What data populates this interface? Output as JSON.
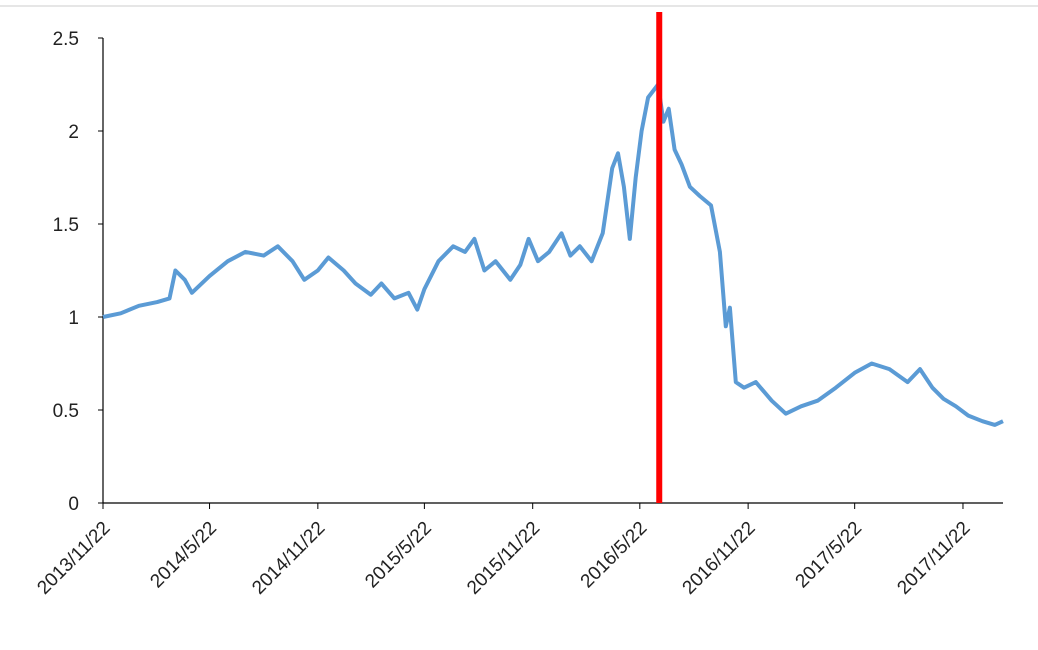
{
  "chart_data": {
    "type": "line",
    "x": [
      "2013/11/22",
      "2013/12/22",
      "2014/1/22",
      "2014/2/22",
      "2014/3/15",
      "2014/3/25",
      "2014/4/10",
      "2014/4/22",
      "2014/5/22",
      "2014/6/22",
      "2014/7/22",
      "2014/8/22",
      "2014/9/15",
      "2014/10/10",
      "2014/10/30",
      "2014/11/22",
      "2014/12/10",
      "2015/1/5",
      "2015/1/25",
      "2015/2/20",
      "2015/3/10",
      "2015/4/1",
      "2015/4/25",
      "2015/5/10",
      "2015/5/22",
      "2015/6/15",
      "2015/7/10",
      "2015/7/30",
      "2015/8/15",
      "2015/9/1",
      "2015/9/20",
      "2015/10/15",
      "2015/11/1",
      "2015/11/15",
      "2015/12/1",
      "2015/12/20",
      "2016/1/10",
      "2016/1/25",
      "2016/2/10",
      "2016/3/1",
      "2016/3/20",
      "2016/4/5",
      "2016/4/15",
      "2016/4/25",
      "2016/5/5",
      "2016/5/15",
      "2016/5/25",
      "2016/6/5",
      "2016/6/22",
      "2016/7/1",
      "2016/7/10",
      "2016/7/20",
      "2016/8/1",
      "2016/8/15",
      "2016/9/1",
      "2016/9/20",
      "2016/10/5",
      "2016/10/15",
      "2016/10/22",
      "2016/11/1",
      "2016/11/15",
      "2016/12/5",
      "2017/1/1",
      "2017/1/25",
      "2017/2/20",
      "2017/3/20",
      "2017/4/20",
      "2017/5/22",
      "2017/6/20",
      "2017/7/20",
      "2017/8/20",
      "2017/9/10",
      "2017/10/1",
      "2017/10/20",
      "2017/11/10",
      "2017/12/1",
      "2017/12/25",
      "2018/1/15",
      "2018/1/29"
    ],
    "series": [
      {
        "color": "#5b9bd5",
        "values": [
          1.0,
          1.02,
          1.06,
          1.08,
          1.1,
          1.25,
          1.2,
          1.13,
          1.22,
          1.3,
          1.35,
          1.33,
          1.38,
          1.3,
          1.2,
          1.25,
          1.32,
          1.25,
          1.18,
          1.12,
          1.18,
          1.1,
          1.13,
          1.04,
          1.15,
          1.3,
          1.38,
          1.35,
          1.42,
          1.25,
          1.3,
          1.2,
          1.28,
          1.42,
          1.3,
          1.35,
          1.45,
          1.33,
          1.38,
          1.3,
          1.45,
          1.8,
          1.88,
          1.7,
          1.42,
          1.75,
          2.0,
          2.18,
          2.25,
          2.05,
          2.12,
          1.9,
          1.82,
          1.7,
          1.65,
          1.6,
          1.35,
          0.95,
          1.05,
          0.65,
          0.62,
          0.65,
          0.55,
          0.48,
          0.52,
          0.55,
          0.62,
          0.7,
          0.75,
          0.72,
          0.65,
          0.72,
          0.62,
          0.56,
          0.52,
          0.47,
          0.44,
          0.42,
          0.44
        ]
      }
    ],
    "xlim": [
      "2013/11/22",
      "2018/1/29"
    ],
    "xticks": [
      "2013/11/22",
      "2014/5/22",
      "2014/11/22",
      "2015/5/22",
      "2015/11/22",
      "2016/5/22",
      "2016/11/22",
      "2017/5/22",
      "2017/11/22"
    ],
    "ylim": [
      0,
      2.5
    ],
    "yticks": [
      0,
      0.5,
      1,
      1.5,
      2,
      2.5
    ],
    "marker_x": "2016/6/24",
    "marker_color": "#ff0000"
  }
}
